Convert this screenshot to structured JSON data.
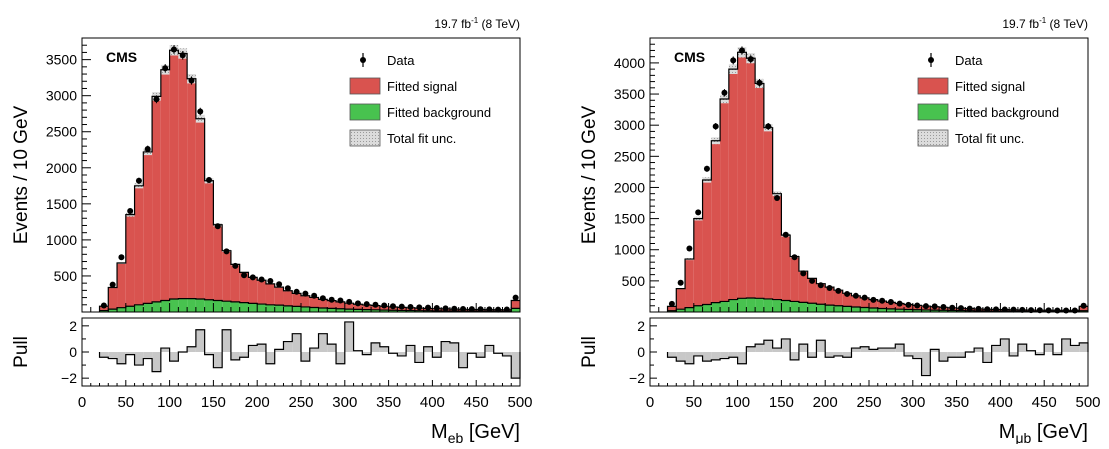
{
  "colors": {
    "signal": "#d9534f",
    "background": "#48c24f",
    "unc": "#c8c8c8",
    "data": "#000000",
    "pull_fill": "#c8c8c8"
  },
  "chart_data": [
    {
      "type": "bar",
      "stacked": true,
      "lumi": "19.7 fb",
      "lumi_sup": "-1",
      "energy": "(8 TeV)",
      "experiment": "CMS",
      "ylabel": "Events / 10 GeV",
      "xlabel_main": "M",
      "xlabel_sub": "eb",
      "xlabel_unit": "[GeV]",
      "pull_label": "Pull",
      "xlim": [
        0,
        500
      ],
      "ylim": [
        0,
        3800
      ],
      "pull_ylim": [
        -2.6,
        2.6
      ],
      "x_ticks": [
        "0",
        "50",
        "100",
        "150",
        "200",
        "250",
        "300",
        "350",
        "400",
        "450",
        "500"
      ],
      "y_ticks": [
        "500",
        "1000",
        "1500",
        "2000",
        "2500",
        "3000",
        "3500"
      ],
      "pull_ticks": [
        "−2",
        "0",
        "2"
      ],
      "legend": [
        "Data",
        "Fitted signal",
        "Fitted background",
        "Total fit unc."
      ],
      "bin_low": [
        20,
        30,
        40,
        50,
        60,
        70,
        80,
        90,
        100,
        110,
        120,
        130,
        140,
        150,
        160,
        170,
        180,
        190,
        200,
        210,
        220,
        230,
        240,
        250,
        260,
        270,
        280,
        290,
        300,
        310,
        320,
        330,
        340,
        350,
        360,
        370,
        380,
        390,
        400,
        410,
        420,
        430,
        440,
        450,
        460,
        470,
        480,
        490
      ],
      "signal": [
        60,
        300,
        620,
        1270,
        1650,
        2100,
        2850,
        3200,
        3450,
        3400,
        3050,
        2500,
        1650,
        1050,
        700,
        520,
        420,
        360,
        330,
        290,
        250,
        210,
        180,
        155,
        140,
        120,
        108,
        95,
        82,
        72,
        65,
        58,
        52,
        46,
        42,
        38,
        35,
        32,
        30,
        28,
        26,
        24,
        23,
        22,
        21,
        21,
        20,
        110
      ],
      "background": [
        20,
        40,
        60,
        80,
        100,
        120,
        140,
        160,
        180,
        185,
        185,
        180,
        170,
        160,
        150,
        140,
        130,
        120,
        110,
        100,
        95,
        85,
        78,
        70,
        62,
        55,
        50,
        45,
        40,
        36,
        33,
        30,
        27,
        24,
        22,
        20,
        18,
        17,
        16,
        15,
        14,
        13,
        12,
        11,
        10,
        10,
        10,
        50
      ],
      "data": [
        90,
        380,
        760,
        1400,
        1820,
        2260,
        2950,
        3380,
        3640,
        3560,
        3210,
        2780,
        1830,
        1190,
        840,
        640,
        510,
        480,
        450,
        430,
        385,
        330,
        280,
        255,
        225,
        190,
        170,
        160,
        140,
        120,
        110,
        100,
        90,
        80,
        75,
        70,
        65,
        60,
        55,
        50,
        45,
        42,
        40,
        38,
        36,
        33,
        35,
        200
      ],
      "pull": [
        -0.4,
        -0.5,
        -0.9,
        -0.2,
        -1.0,
        -0.5,
        -1.5,
        0.3,
        -0.7,
        0.0,
        0.4,
        1.7,
        -0.2,
        -1.2,
        1.7,
        -0.6,
        -0.4,
        0.5,
        0.6,
        -0.9,
        0.2,
        0.8,
        1.4,
        -0.7,
        0.3,
        1.4,
        0.6,
        -0.9,
        2.3,
        0.1,
        -0.2,
        0.7,
        0.4,
        -0.1,
        -0.3,
        0.5,
        -0.8,
        0.4,
        -0.4,
        0.8,
        0.7,
        -1.2,
        -0.1,
        -0.4,
        0.5,
        -0.1,
        -0.3,
        -2.0
      ]
    },
    {
      "type": "bar",
      "stacked": true,
      "lumi": "19.7 fb",
      "lumi_sup": "-1",
      "energy": "(8 TeV)",
      "experiment": "CMS",
      "ylabel": "Events / 10 GeV",
      "xlabel_main": "M",
      "xlabel_sub": "μb",
      "xlabel_unit": "[GeV]",
      "pull_label": "Pull",
      "xlim": [
        0,
        500
      ],
      "ylim": [
        0,
        4400
      ],
      "pull_ylim": [
        -2.6,
        2.6
      ],
      "x_ticks": [
        "0",
        "50",
        "100",
        "150",
        "200",
        "250",
        "300",
        "350",
        "400",
        "450",
        "500"
      ],
      "y_ticks": [
        "500",
        "1000",
        "1500",
        "2000",
        "2500",
        "3000",
        "3500",
        "4000"
      ],
      "pull_ticks": [
        "−2",
        "0",
        "2"
      ],
      "legend": [
        "Data",
        "Fitted signal",
        "Fitted background",
        "Total fit unc."
      ],
      "bin_low": [
        20,
        30,
        40,
        50,
        60,
        70,
        80,
        90,
        100,
        110,
        120,
        130,
        140,
        150,
        160,
        170,
        180,
        190,
        200,
        210,
        220,
        230,
        240,
        250,
        260,
        270,
        280,
        290,
        300,
        310,
        320,
        330,
        340,
        350,
        360,
        370,
        380,
        390,
        400,
        410,
        420,
        430,
        440,
        450,
        460,
        470,
        480,
        490
      ],
      "signal": [
        70,
        330,
        780,
        1400,
        2000,
        2600,
        3250,
        3700,
        3950,
        3850,
        3450,
        2750,
        1700,
        1050,
        720,
        500,
        400,
        330,
        290,
        250,
        210,
        180,
        155,
        135,
        120,
        105,
        92,
        80,
        70,
        62,
        55,
        48,
        43,
        38,
        34,
        31,
        28,
        26,
        24,
        22,
        21,
        20,
        19,
        18,
        17,
        17,
        17,
        70
      ],
      "background": [
        20,
        45,
        70,
        100,
        120,
        150,
        170,
        200,
        220,
        225,
        220,
        210,
        200,
        185,
        170,
        155,
        140,
        125,
        110,
        100,
        90,
        80,
        72,
        64,
        56,
        50,
        45,
        40,
        36,
        33,
        30,
        27,
        24,
        22,
        20,
        18,
        16,
        15,
        14,
        13,
        12,
        11,
        10,
        10,
        10,
        10,
        10,
        20
      ],
      "data": [
        130,
        470,
        1020,
        1600,
        2300,
        2980,
        3520,
        4040,
        4200,
        4060,
        3680,
        2980,
        1830,
        1240,
        880,
        620,
        500,
        430,
        385,
        340,
        290,
        260,
        230,
        195,
        180,
        160,
        135,
        115,
        105,
        95,
        90,
        80,
        68,
        62,
        55,
        50,
        45,
        42,
        40,
        38,
        35,
        30,
        28,
        27,
        25,
        24,
        25,
        100
      ],
      "pull": [
        -0.4,
        -0.7,
        -0.9,
        -0.3,
        -0.7,
        -0.6,
        -0.5,
        -0.4,
        -0.9,
        0.4,
        0.6,
        0.9,
        0.3,
        1.0,
        -0.6,
        0.6,
        -0.4,
        0.9,
        -0.4,
        -0.3,
        -0.4,
        0.3,
        0.4,
        0.2,
        0.3,
        0.3,
        0.6,
        -0.3,
        -0.5,
        -1.8,
        0.2,
        -0.7,
        -0.4,
        -0.4,
        0.0,
        0.3,
        -0.8,
        0.5,
        1.0,
        -0.3,
        0.6,
        0.1,
        -0.2,
        0.6,
        -0.2,
        1.0,
        0.5,
        0.7
      ]
    }
  ]
}
